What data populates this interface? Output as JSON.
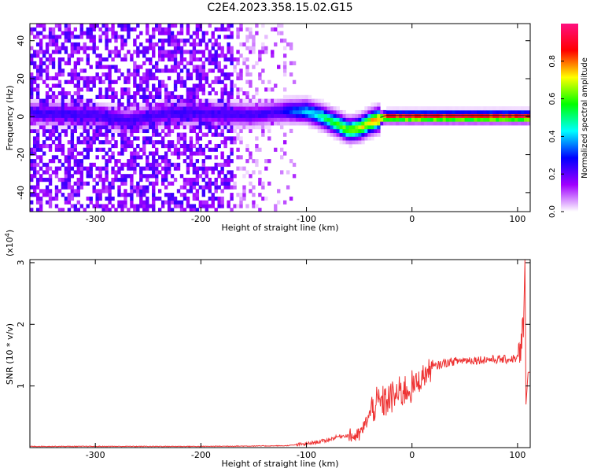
{
  "title": "C2E4.2023.358.15.02.G15",
  "chart_data": [
    {
      "type": "heatmap",
      "name": "spectrogram",
      "xlabel": "Height of straight line (km)",
      "ylabel": "Frequency (Hz)",
      "xlim": [
        -362,
        112
      ],
      "ylim": [
        -50,
        49
      ],
      "x_ticks": [
        -300,
        -200,
        -100,
        0,
        100
      ],
      "y_ticks": [
        -40,
        -20,
        0,
        20,
        40
      ],
      "colorbar": {
        "label": "Normalized spectral amplitude",
        "range": [
          0,
          1
        ],
        "ticks": [
          "0.0",
          "0.2",
          "0.4",
          "0.6",
          "0.8"
        ],
        "colors": [
          "#ffffff",
          "#a000ff",
          "#0000ff",
          "#00ffff",
          "#00ff00",
          "#ffff00",
          "#ff0000",
          "#ff1080"
        ]
      },
      "ridge": {
        "x": [
          -362,
          -300,
          -270,
          -230,
          -200,
          -150,
          -120,
          -100,
          -85,
          -70,
          -60,
          -50,
          -40,
          -30,
          -25,
          -15,
          0,
          50,
          100,
          112
        ],
        "y": [
          2,
          1,
          -2,
          2,
          2,
          1,
          3,
          3,
          0,
          -4,
          -7,
          -6,
          -3,
          -1,
          0,
          0,
          0,
          0,
          0,
          0
        ]
      },
      "noise_extent_x": [
        -362,
        -110
      ]
    },
    {
      "type": "line",
      "name": "snr",
      "xlabel": "Height of straight line (km)",
      "ylabel": "SNR (10 * v/v)",
      "y_multiplier": "(x10",
      "y_multiplier_exp": "4",
      "y_multiplier_close": ")",
      "xlim": [
        -362,
        112
      ],
      "ylim": [
        0,
        3.05
      ],
      "x_ticks": [
        -300,
        -200,
        -100,
        0,
        100
      ],
      "y_ticks": [
        1,
        2,
        3
      ],
      "color": "#ee3333",
      "series": {
        "x": [
          -362,
          -300,
          -200,
          -120,
          -100,
          -80,
          -70,
          -60,
          -55,
          -50,
          -45,
          -40,
          -35,
          -30,
          -25,
          -20,
          -15,
          -10,
          -5,
          0,
          5,
          10,
          20,
          30,
          40,
          50,
          60,
          70,
          80,
          90,
          100,
          103,
          105,
          106,
          107,
          108,
          110,
          112
        ],
        "y": [
          0.02,
          0.02,
          0.02,
          0.03,
          0.06,
          0.12,
          0.18,
          0.2,
          0.18,
          0.2,
          0.35,
          0.55,
          0.7,
          0.72,
          0.75,
          0.8,
          0.85,
          0.9,
          0.95,
          0.98,
          1.05,
          1.15,
          1.3,
          1.37,
          1.4,
          1.42,
          1.42,
          1.43,
          1.43,
          1.43,
          1.45,
          1.5,
          1.9,
          2.2,
          3.05,
          0.7,
          1.22,
          1.22
        ]
      },
      "noise": [
        {
          "x": [
            -110,
            -60
          ],
          "amp": 0.03
        },
        {
          "x": [
            -60,
            -40
          ],
          "amp": 0.12
        },
        {
          "x": [
            -40,
            0
          ],
          "amp": 0.28
        },
        {
          "x": [
            0,
            20
          ],
          "amp": 0.2
        },
        {
          "x": [
            20,
            100
          ],
          "amp": 0.07
        },
        {
          "x": [
            100,
            107
          ],
          "amp": 0.35
        }
      ]
    }
  ]
}
